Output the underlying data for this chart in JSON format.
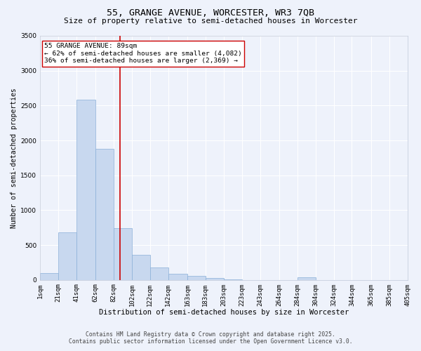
{
  "title": "55, GRANGE AVENUE, WORCESTER, WR3 7QB",
  "subtitle": "Size of property relative to semi-detached houses in Worcester",
  "xlabel": "Distribution of semi-detached houses by size in Worcester",
  "ylabel": "Number of semi-detached properties",
  "property_size": 89,
  "annotation_title": "55 GRANGE AVENUE: 89sqm",
  "annotation_line1": "← 62% of semi-detached houses are smaller (4,082)",
  "annotation_line2": "36% of semi-detached houses are larger (2,369) →",
  "footnote1": "Contains HM Land Registry data © Crown copyright and database right 2025.",
  "footnote2": "Contains public sector information licensed under the Open Government Licence v3.0.",
  "bar_edges": [
    1,
    21,
    41,
    62,
    82,
    102,
    122,
    142,
    163,
    183,
    203,
    223,
    243,
    264,
    284,
    304,
    324,
    344,
    365,
    385,
    405
  ],
  "bar_heights": [
    100,
    680,
    2580,
    1880,
    740,
    360,
    180,
    90,
    60,
    30,
    10,
    0,
    0,
    0,
    40,
    0,
    0,
    0,
    0,
    0
  ],
  "bar_color": "#c8d8ef",
  "bar_edge_color": "#8ab0d8",
  "vline_color": "#cc0000",
  "vline_x": 89,
  "ylim": [
    0,
    3500
  ],
  "yticks": [
    0,
    500,
    1000,
    1500,
    2000,
    2500,
    3000,
    3500
  ],
  "background_color": "#eef2fb",
  "grid_color": "#ffffff",
  "annotation_box_color": "#ffffff",
  "annotation_box_edge": "#cc0000",
  "title_fontsize": 9.5,
  "subtitle_fontsize": 8.0,
  "xlabel_fontsize": 7.5,
  "ylabel_fontsize": 7.0,
  "tick_fontsize": 6.5,
  "annotation_fontsize": 6.8,
  "footnote_fontsize": 5.8
}
